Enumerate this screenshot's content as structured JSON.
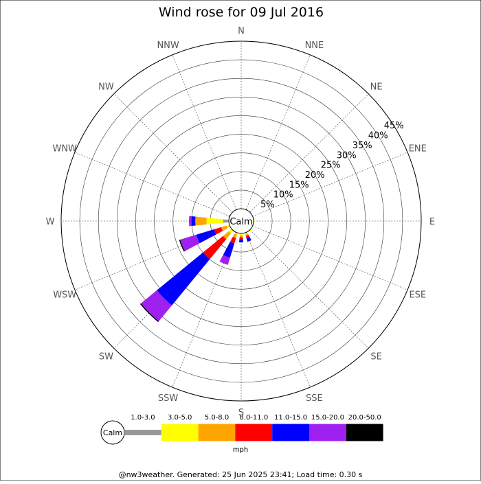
{
  "chart_data": {
    "type": "windrose",
    "title": "Wind rose for 09 Jul 2016",
    "directions": [
      "N",
      "NNE",
      "NE",
      "ENE",
      "E",
      "ESE",
      "SE",
      "SSE",
      "S",
      "SSW",
      "SW",
      "WSW",
      "W",
      "WNW",
      "NW",
      "NNW"
    ],
    "radial_ticks": [
      "5%",
      "10%",
      "15%",
      "20%",
      "25%",
      "30%",
      "35%",
      "40%",
      "45%"
    ],
    "radial_max": 45,
    "calm_label": "Calm",
    "speed_bins": [
      {
        "label": "1.0-3.0",
        "color": "#999999"
      },
      {
        "label": "3.0-5.0",
        "color": "#ffff00"
      },
      {
        "label": "5.0-8.0",
        "color": "#ffa500"
      },
      {
        "label": "8.0-11.0",
        "color": "#ff0000"
      },
      {
        "label": "11.0-15.0",
        "color": "#0000ff"
      },
      {
        "label": "15.0-20.0",
        "color": "#a020f0"
      },
      {
        "label": "20.0-50.0",
        "color": "#000000"
      }
    ],
    "legend_unit": "mph",
    "series": [
      {
        "direction": "E",
        "values": [
          0,
          0.3,
          0,
          0,
          0,
          0,
          0
        ]
      },
      {
        "direction": "ESE",
        "values": [
          0,
          0.3,
          0,
          0,
          0,
          0,
          0
        ]
      },
      {
        "direction": "SE",
        "values": [
          0,
          0.4,
          0,
          0,
          0,
          0,
          0
        ]
      },
      {
        "direction": "SSE",
        "values": [
          0,
          0.5,
          0.4,
          0.6,
          1.0,
          0,
          0
        ]
      },
      {
        "direction": "S",
        "values": [
          0,
          0.5,
          0.5,
          0.6,
          0.8,
          0,
          0
        ]
      },
      {
        "direction": "SSW",
        "values": [
          0,
          0.5,
          1.0,
          1.5,
          4.0,
          2.0,
          0
        ]
      },
      {
        "direction": "SW",
        "values": [
          0,
          1.0,
          2.0,
          7.0,
          16.0,
          5.5,
          0.3
        ]
      },
      {
        "direction": "WSW",
        "values": [
          0,
          0.8,
          1.5,
          2.0,
          5.0,
          4.5,
          0.3
        ]
      },
      {
        "direction": "W",
        "values": [
          1.5,
          4.5,
          3.0,
          0,
          1.0,
          0.7,
          0
        ]
      },
      {
        "direction": "WNW",
        "values": [
          0.3,
          0,
          0,
          0,
          0,
          0,
          0
        ]
      }
    ]
  },
  "footer": "@nw3weather. Generated: 25 Jun 2025 23:41; Load time: 0.30 s"
}
